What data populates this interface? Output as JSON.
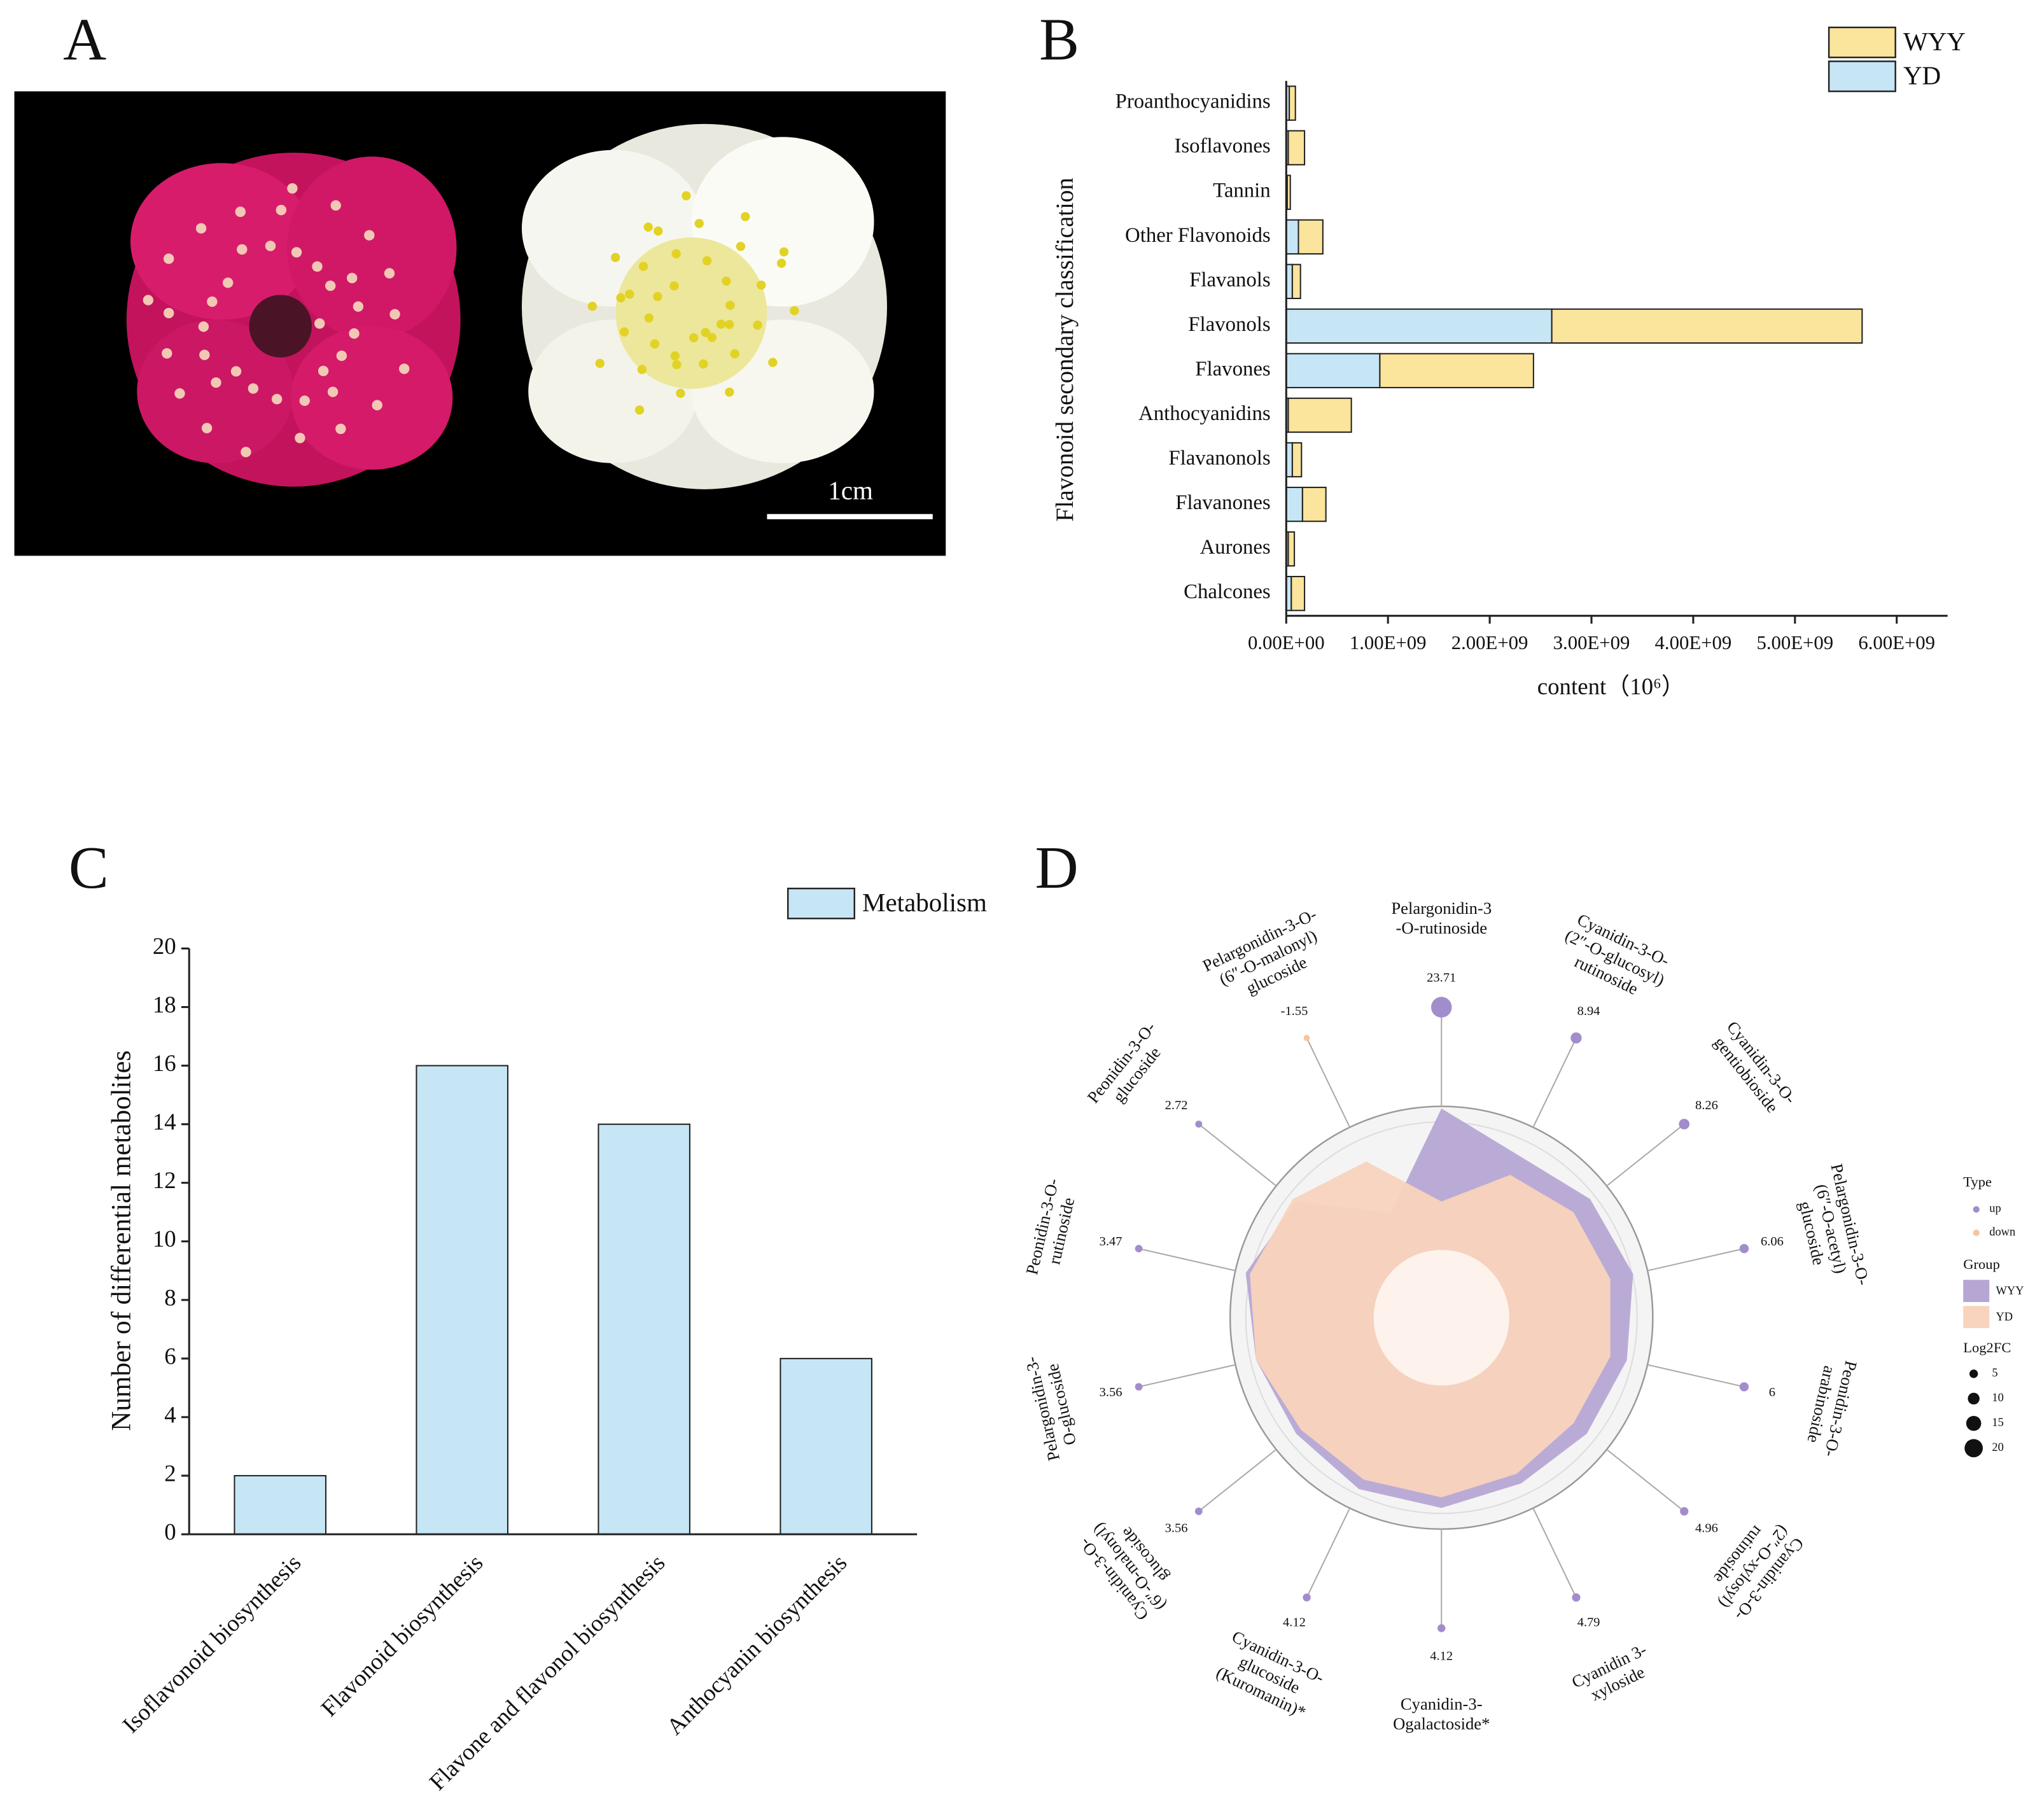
{
  "chart_data": [
    {
      "type": "image",
      "panel": "A",
      "scale_label": "1cm"
    },
    {
      "type": "bar",
      "panel": "B",
      "orientation": "horizontal",
      "stacked": true,
      "categories": [
        "Proanthocyanidins",
        "Isoflavones",
        "Tannin",
        "Other Flavonoids",
        "Flavanols",
        "Flavonols",
        "Flavones",
        "Anthocyanidins",
        "Flavanonols",
        "Flavanones",
        "Aurones",
        "Chalcones"
      ],
      "series": [
        {
          "name": "YD",
          "color": "#c6e6f6",
          "values": [
            30000000,
            20000000,
            10000000,
            120000000,
            60000000,
            2610000000,
            920000000,
            20000000,
            60000000,
            160000000,
            20000000,
            50000000
          ]
        },
        {
          "name": "WYY",
          "color": "#fbe49b",
          "values": [
            60000000,
            160000000,
            30000000,
            240000000,
            80000000,
            3050000000,
            1510000000,
            620000000,
            90000000,
            230000000,
            60000000,
            130000000
          ]
        }
      ],
      "xlim": [
        0,
        6500000000
      ],
      "xticks": [
        {
          "value": 0,
          "label": "0.00E+00"
        },
        {
          "value": 1000000000,
          "label": "1.00E+09"
        },
        {
          "value": 2000000000,
          "label": "2.00E+09"
        },
        {
          "value": 3000000000,
          "label": "3.00E+09"
        },
        {
          "value": 4000000000,
          "label": "4.00E+09"
        },
        {
          "value": 5000000000,
          "label": "5.00E+09"
        },
        {
          "value": 6000000000,
          "label": "6.00E+09"
        }
      ],
      "xlabel": "content（10⁶）",
      "ylabel": "Flavonoid secondary classification"
    },
    {
      "type": "bar",
      "panel": "C",
      "orientation": "vertical",
      "stacked": false,
      "categories": [
        "Isoflavonoid biosynthesis",
        "Flavonoid biosynthesis",
        "Flavone and flavonol biosynthesis",
        "Anthocyanin biosynthesis"
      ],
      "series": [
        {
          "name": "Metabolism",
          "color": "#c6e6f6",
          "values": [
            2,
            16,
            14,
            6
          ]
        }
      ],
      "ylim": [
        0,
        20
      ],
      "yticks": [
        0,
        2,
        4,
        6,
        8,
        10,
        12,
        14,
        16,
        18,
        20
      ],
      "ylabel": "Number of differential metabolites"
    },
    {
      "type": "radar",
      "panel": "D",
      "categories": [
        [
          "Pelargonidin-3",
          "-O-rutinoside"
        ],
        [
          "Cyanidin-3-O-",
          "(2″-O-glucosyl)",
          "rutinoside"
        ],
        [
          "Cyanidin-3-O-",
          "gentiobioside"
        ],
        [
          "Pelargonidin-3-O-",
          "(6″-O-acetyl)",
          "glucoside"
        ],
        [
          "Peonidin-3-O-",
          "arabinoside"
        ],
        [
          "Cyanidin-3-O-",
          "(2″-O-xylosyl)",
          "rutinoside"
        ],
        [
          "Cyanidin 3-",
          "xyloside"
        ],
        [
          "Cyanidin-3-",
          "Ogalactoside*"
        ],
        [
          "Cyanidin-3-O-",
          "glucoside",
          "(Kuromanin)*"
        ],
        [
          "Cyanidin-3-O-",
          "(6″-O-malonyl)",
          "glucoside"
        ],
        [
          "Pelargonidin-3-",
          "O-glucoside"
        ],
        [
          "Peonidin-3-O-",
          "rutinoside"
        ],
        [
          "Peonidin-3-O-",
          "glucoside"
        ],
        [
          "Pelargonidin-3-O-",
          "(6″-O-malonyl)",
          "glucoside"
        ]
      ],
      "rlim": [
        0,
        1
      ],
      "series": [
        {
          "name": "WYY",
          "color": "#b6a6d4",
          "values": [
            0.99,
            0.85,
            0.9,
            0.93,
            0.9,
            0.88,
            0.87,
            0.9,
            0.9,
            0.88,
            0.9,
            0.95,
            0.88,
            0.55
          ]
        },
        {
          "name": "YD",
          "color": "#f8d3bd",
          "values": [
            0.55,
            0.75,
            0.8,
            0.82,
            0.82,
            0.8,
            0.82,
            0.85,
            0.85,
            0.85,
            0.9,
            0.93,
            0.9,
            0.82
          ]
        }
      ],
      "points": {
        "values": [
          23.71,
          8.94,
          8.26,
          6.06,
          6,
          4.96,
          4.79,
          4.12,
          4.12,
          3.56,
          3.56,
          3.47,
          2.72,
          -1.55
        ],
        "types": [
          "up",
          "up",
          "up",
          "up",
          "up",
          "up",
          "up",
          "up",
          "up",
          "up",
          "up",
          "up",
          "up",
          "down"
        ]
      },
      "type_legend": {
        "title": "Type",
        "entries": [
          "up",
          "down"
        ],
        "colors": [
          "#a28dcc",
          "#f5c69d"
        ]
      },
      "group_legend_title": "Group",
      "size_legend": {
        "title": "Log2FC",
        "values": [
          5,
          10,
          15,
          20
        ]
      }
    }
  ]
}
